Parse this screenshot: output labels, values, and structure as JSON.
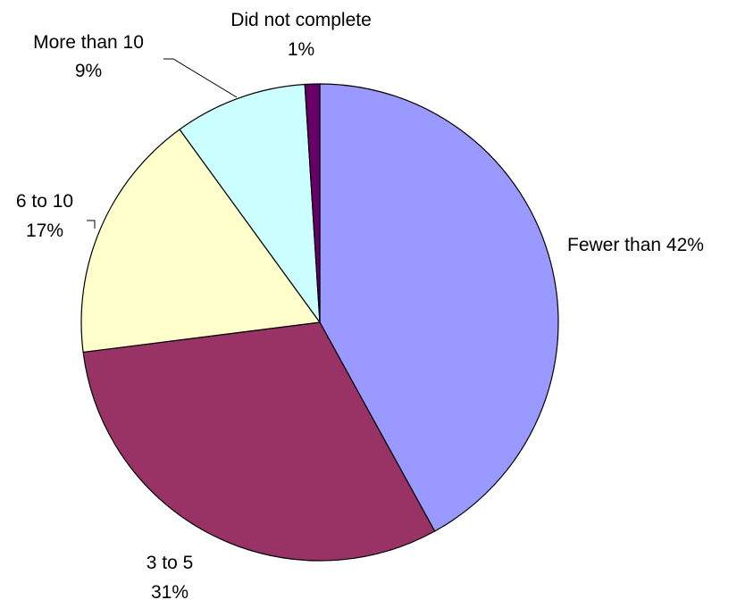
{
  "chart_data": {
    "type": "pie",
    "title": "",
    "slices": [
      {
        "label": "Fewer than",
        "value": 42,
        "value_label": "42%",
        "color": "#9999FF"
      },
      {
        "label": "3 to 5",
        "value": 31,
        "value_label": "31%",
        "color": "#993366"
      },
      {
        "label": "6 to 10",
        "value": 17,
        "value_label": "17%",
        "color": "#FFFFCC"
      },
      {
        "label": "More than 10",
        "value": 9,
        "value_label": "9%",
        "color": "#CCFFFF"
      },
      {
        "label": "Did not complete",
        "value": 1,
        "value_label": "1%",
        "color": "#660066"
      }
    ],
    "start_angle": "12 o'clock",
    "direction": "clockwise",
    "legend": "none"
  }
}
